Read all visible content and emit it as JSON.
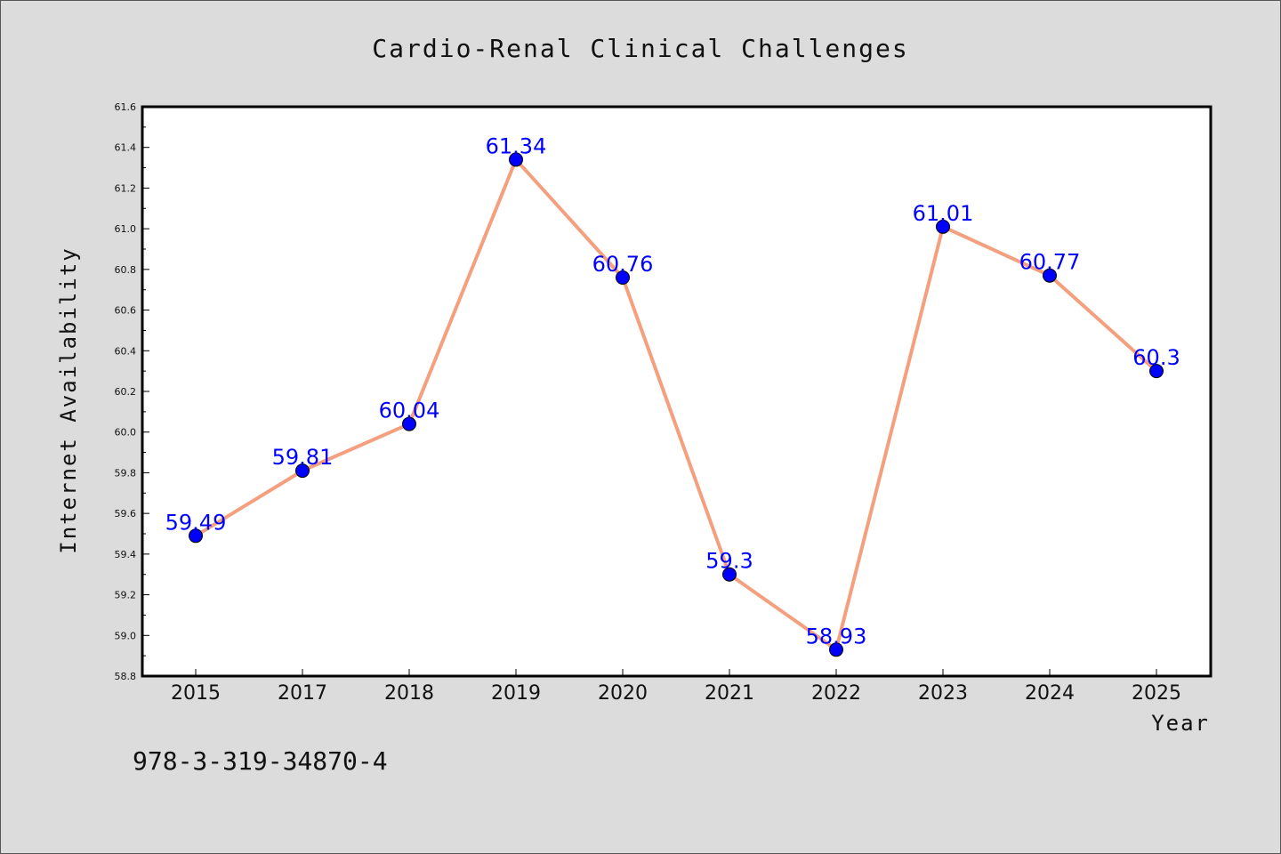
{
  "chart_data": {
    "type": "line",
    "title": "Cardio-Renal Clinical Challenges",
    "xlabel": "Year",
    "ylabel": "Internet Availability",
    "categories": [
      "2015",
      "2017",
      "2018",
      "2019",
      "2020",
      "2021",
      "2022",
      "2023",
      "2024",
      "2025"
    ],
    "series": [
      {
        "values": [
          59.49,
          59.81,
          60.04,
          61.34,
          60.76,
          59.3,
          58.93,
          61.01,
          60.77,
          60.3
        ],
        "labels": [
          "59.49",
          "59.81",
          "60.04",
          "61.34",
          "60.76",
          "59.3",
          "58.93",
          "61.01",
          "60.77",
          "60.3"
        ],
        "line_color": "#f4a07e",
        "marker_color": "#0000ff"
      }
    ],
    "ylim": [
      58.8,
      61.6
    ],
    "yticks": [
      "58.8",
      "59.0",
      "59.2",
      "59.4",
      "59.6",
      "59.8",
      "60.0",
      "60.2",
      "60.4",
      "60.6",
      "60.8",
      "61.0",
      "61.2",
      "61.4",
      "61.6"
    ],
    "grid": false,
    "legend": "none"
  },
  "footer_text": "978-3-319-34870-4",
  "colors": {
    "background": "#dcdcdc",
    "plot_background": "#ffffff",
    "data_label": "#0000ff"
  }
}
